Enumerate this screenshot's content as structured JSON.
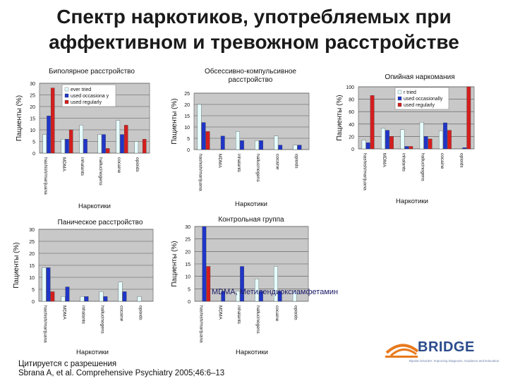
{
  "slide": {
    "title": "Спектр наркотиков,  употребляемых при\nаффективном и тревожном расстройстве",
    "footnote": "MDMA, Метилендиоксиамфетамин",
    "citation_line1": "Цитируется с разрешения",
    "citation_line2": "Sbrana A, et al. Comprehensive Psychiatry 2005;46:6–13",
    "logo_text": "BRIDGE",
    "logo_tagline": "Bipolar Disorder: Improving Diagnosis, Guidance and Education"
  },
  "colors": {
    "plot_bg": "#c8c8c8",
    "grid": "#555555",
    "ever_tried": "#e6ffff",
    "occasionally": "#1f35c8",
    "regularly": "#d41e1e"
  },
  "legend_labels": [
    "ever tried",
    "used occasionally",
    "used regularly"
  ],
  "chart_data": [
    {
      "type": "bar",
      "id": "bipolar",
      "title": "Биполярное расстройство",
      "xlabel": "Наркотики",
      "ylabel": "Пациенты (%)",
      "ylim": [
        0,
        30
      ],
      "yticks": [
        0,
        5,
        10,
        15,
        20,
        25,
        30
      ],
      "categories": [
        "hashish/marijuana",
        "MDMA",
        "inhalants",
        "hallucinogens",
        "cocaine",
        "opioids"
      ],
      "legend": [
        "ever tried",
        "used occasiona y",
        "used regularly"
      ],
      "series": [
        {
          "name": "ever tried",
          "values": [
            8,
            6,
            12,
            8,
            14,
            5
          ]
        },
        {
          "name": "used occasiona y",
          "values": [
            16,
            6,
            6,
            8,
            8,
            0
          ]
        },
        {
          "name": "used regularly",
          "values": [
            28,
            10,
            0,
            2,
            12,
            6
          ]
        }
      ]
    },
    {
      "type": "bar",
      "id": "ocd",
      "title": "Обсессивно-компульсивное расстройство",
      "xlabel": "Наркотики",
      "ylabel": "Пациенты (%)",
      "ylim": [
        0,
        25
      ],
      "yticks": [
        0,
        5,
        10,
        15,
        20,
        25
      ],
      "categories": [
        "hashish/marijuana",
        "MDMA",
        "inhalants",
        "hallucinogens",
        "cocaine",
        "opioids"
      ],
      "legend": [],
      "series": [
        {
          "name": "",
          "values": [
            20,
            0,
            8,
            4,
            6,
            2
          ]
        },
        {
          "name": "",
          "values": [
            12,
            6,
            4,
            4,
            2,
            2
          ]
        },
        {
          "name": "",
          "values": [
            8,
            0,
            0,
            0,
            0,
            0
          ]
        }
      ]
    },
    {
      "type": "bar",
      "id": "opioid",
      "title": "Опийная наркомания",
      "xlabel": "Наркотики",
      "ylabel": "Пациенты (%)",
      "ylim": [
        0,
        100
      ],
      "yticks": [
        0,
        20,
        40,
        60,
        80,
        100
      ],
      "categories": [
        "hashish/marijuana",
        "MDMA",
        "inhalants",
        "hallucinogens",
        "cocaine",
        "opioids"
      ],
      "legend": [
        "r tried",
        "used occasionally",
        "used regularly"
      ],
      "series": [
        {
          "name": "r tried",
          "values": [
            14,
            33,
            31,
            43,
            29,
            0
          ]
        },
        {
          "name": "used occasionally",
          "values": [
            10,
            30,
            4,
            20,
            42,
            2
          ]
        },
        {
          "name": "used regularly",
          "values": [
            86,
            20,
            4,
            16,
            30,
            100
          ]
        }
      ]
    },
    {
      "type": "bar",
      "id": "panic",
      "title": "Паническое расстройство",
      "xlabel": "Наркотики",
      "ylabel": "Пациенты (%)",
      "ylim": [
        0,
        30
      ],
      "yticks": [
        0,
        5,
        10,
        15,
        20,
        25,
        30
      ],
      "categories": [
        "hashish/marijuana",
        "MDMA",
        "inhalants",
        "hallucinogens",
        "cocaine",
        "opioids"
      ],
      "legend": [],
      "series": [
        {
          "name": "",
          "values": [
            14,
            2,
            2,
            4,
            8,
            2
          ]
        },
        {
          "name": "",
          "values": [
            14,
            6,
            2,
            2,
            4,
            0
          ]
        },
        {
          "name": "",
          "values": [
            4,
            0,
            0,
            0,
            0,
            0
          ]
        }
      ]
    },
    {
      "type": "bar",
      "id": "control",
      "title": "Контрольная группа",
      "xlabel": "Наркотики",
      "ylabel": "Пациенты (%)",
      "ylim": [
        0,
        30
      ],
      "yticks": [
        0,
        5,
        10,
        15,
        20,
        25,
        30
      ],
      "categories": [
        "hashish/marijuana",
        "MDMA",
        "inhalants",
        "hallucinogens",
        "cocaine",
        "opioids"
      ],
      "legend": [],
      "series": [
        {
          "name": "",
          "values": [
            0,
            0,
            4,
            9,
            14,
            4
          ]
        },
        {
          "name": "",
          "values": [
            30,
            4,
            14,
            4,
            4,
            0
          ]
        },
        {
          "name": "",
          "values": [
            14,
            0,
            0,
            0,
            0,
            0
          ]
        }
      ]
    }
  ]
}
